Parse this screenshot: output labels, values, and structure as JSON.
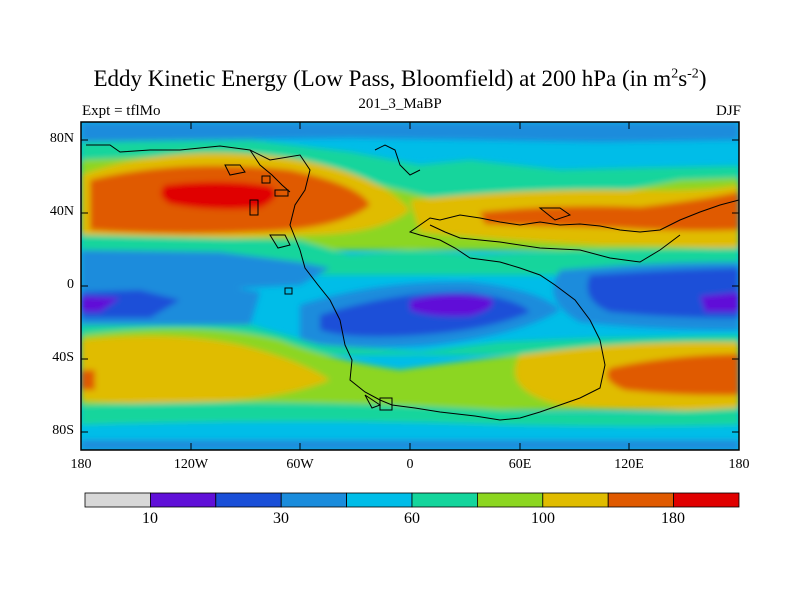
{
  "title": {
    "main": "Eddy Kinetic Energy (Low Pass, Bloomfield) at 200 hPa (in m",
    "sup1": "2",
    "mid": "s",
    "sup2": "-2",
    "end": ")"
  },
  "subtitle_left": "Expt = tflMo",
  "subtitle_center": "201_3_MaBP",
  "subtitle_right": "DJF",
  "lat_labels": [
    "80N",
    "40N",
    "0",
    "40S",
    "80S"
  ],
  "lon_labels": [
    "180",
    "120W",
    "60W",
    "0",
    "60E",
    "120E",
    "180"
  ],
  "colorbar": {
    "colors": [
      "#d8d8d8",
      "#6010d8",
      "#1a4fd8",
      "#1a8cdc",
      "#00bde8",
      "#14d59c",
      "#8cd620",
      "#e0bc00",
      "#e05a00",
      "#e00000"
    ],
    "labels": [
      "10",
      "30",
      "60",
      "100",
      "180"
    ]
  }
}
